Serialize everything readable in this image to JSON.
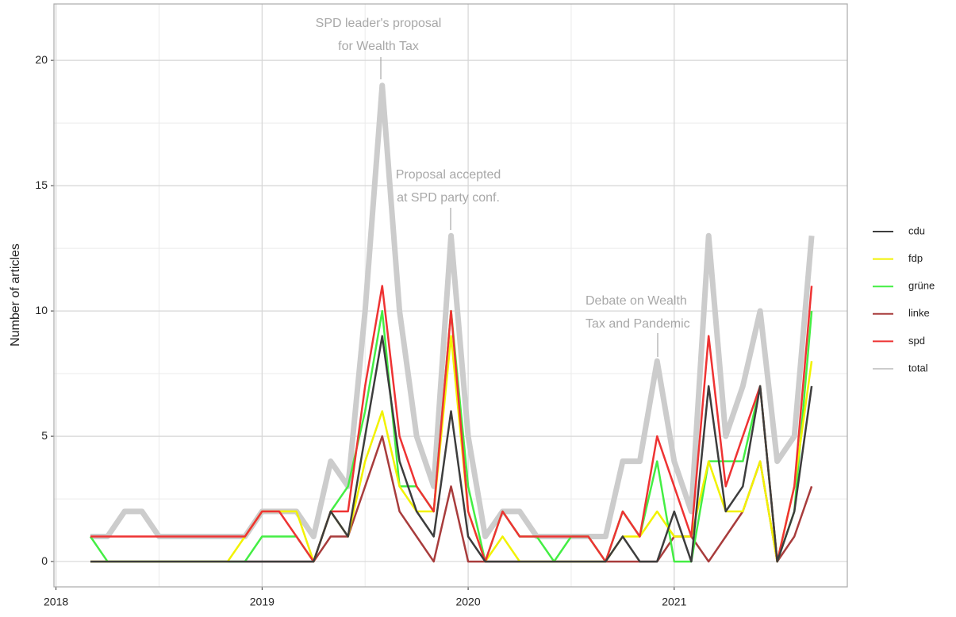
{
  "chart_data": {
    "type": "line",
    "y_label": "Number of articles",
    "x": [
      2018.167,
      2018.25,
      2018.333,
      2018.417,
      2018.5,
      2018.583,
      2018.667,
      2018.75,
      2018.833,
      2018.917,
      2019,
      2019.083,
      2019.167,
      2019.25,
      2019.333,
      2019.417,
      2019.5,
      2019.583,
      2019.667,
      2019.75,
      2019.833,
      2019.917,
      2020,
      2020.083,
      2020.167,
      2020.25,
      2020.333,
      2020.417,
      2020.5,
      2020.583,
      2020.667,
      2020.75,
      2020.833,
      2020.917,
      2021,
      2021.083,
      2021.167,
      2021.25,
      2021.333,
      2021.417,
      2021.5,
      2021.583,
      2021.667
    ],
    "series": [
      {
        "name": "total",
        "color": "#cccccc",
        "values": [
          1,
          1,
          2,
          2,
          1,
          1,
          1,
          1,
          1,
          1,
          2,
          2,
          2,
          1,
          4,
          3,
          10,
          19,
          10,
          5,
          3,
          13,
          5,
          1,
          2,
          2,
          1,
          1,
          1,
          1,
          1,
          4,
          4,
          8,
          4,
          2,
          13,
          5,
          7,
          10,
          4,
          5,
          13
        ]
      },
      {
        "name": "linke",
        "color": "#a83c3c",
        "values": [
          0,
          0,
          0,
          0,
          0,
          0,
          0,
          0,
          0,
          0,
          0,
          0,
          0,
          0,
          1,
          1,
          3,
          5,
          2,
          1,
          0,
          3,
          0,
          0,
          0,
          0,
          0,
          0,
          0,
          0,
          0,
          0,
          0,
          0,
          1,
          1,
          0,
          1,
          2,
          4,
          0,
          1,
          3
        ]
      },
      {
        "name": "grüne",
        "color": "#44ee44",
        "values": [
          1,
          0,
          0,
          0,
          0,
          0,
          0,
          0,
          0,
          0,
          1,
          1,
          1,
          0,
          2,
          3,
          6,
          10,
          3,
          3,
          2,
          10,
          3,
          0,
          2,
          1,
          1,
          0,
          1,
          1,
          0,
          2,
          1,
          4,
          0,
          0,
          4,
          4,
          4,
          7,
          0,
          2,
          10
        ]
      },
      {
        "name": "fdp",
        "color": "#f2f200",
        "values": [
          0,
          0,
          0,
          0,
          0,
          0,
          0,
          0,
          0,
          1,
          2,
          2,
          2,
          0,
          2,
          1,
          4,
          6,
          3,
          2,
          2,
          9,
          2,
          0,
          1,
          0,
          0,
          0,
          0,
          0,
          0,
          1,
          1,
          2,
          1,
          1,
          4,
          2,
          2,
          4,
          0,
          3,
          8
        ]
      },
      {
        "name": "spd",
        "color": "#ee3333",
        "values": [
          1,
          1,
          1,
          1,
          1,
          1,
          1,
          1,
          1,
          1,
          2,
          2,
          1,
          0,
          2,
          2,
          7,
          11,
          5,
          3,
          2,
          10,
          2,
          0,
          2,
          1,
          1,
          1,
          1,
          1,
          0,
          2,
          1,
          5,
          3,
          1,
          9,
          3,
          5,
          7,
          0,
          3,
          11
        ]
      },
      {
        "name": "cdu",
        "color": "#3d3d3d",
        "values": [
          0,
          0,
          0,
          0,
          0,
          0,
          0,
          0,
          0,
          0,
          0,
          0,
          0,
          0,
          2,
          1,
          5,
          9,
          4,
          2,
          1,
          6,
          1,
          0,
          0,
          0,
          0,
          0,
          0,
          0,
          0,
          1,
          0,
          0,
          2,
          0,
          7,
          2,
          3,
          7,
          0,
          2,
          7
        ]
      }
    ],
    "legend_order": [
      "cdu",
      "fdp",
      "grüne",
      "linke",
      "spd",
      "total"
    ],
    "annotations": [
      {
        "lines": [
          "SPD leader's proposal",
          "for Wealth Tax"
        ]
      },
      {
        "lines": [
          "Proposal accepted",
          "at SPD party conf."
        ]
      },
      {
        "lines": [
          "Debate on Wealth",
          "Tax and Pandemic"
        ]
      }
    ],
    "xlim": [
      2017.99,
      2021.84
    ],
    "xticks": [
      2018,
      2019,
      2020,
      2021
    ],
    "ylim": [
      -1.01,
      22.25
    ],
    "yticks": [
      0,
      5,
      10,
      15,
      20
    ],
    "grid": true,
    "legend": "right"
  }
}
